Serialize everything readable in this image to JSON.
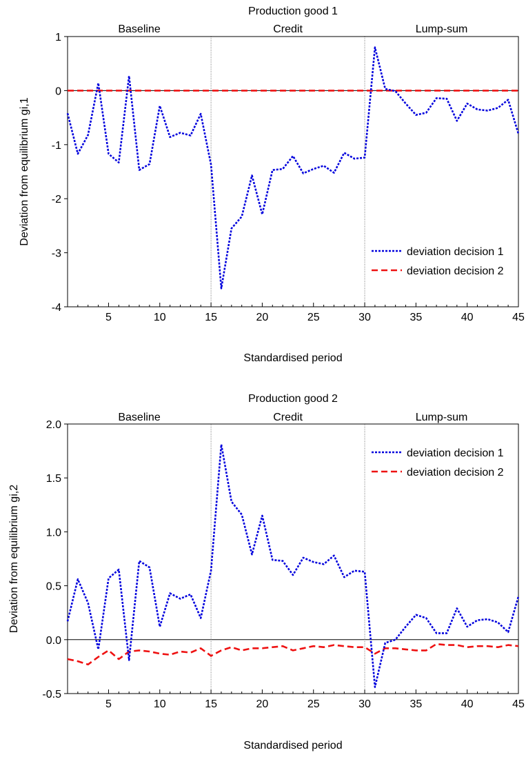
{
  "chart_data": [
    {
      "type": "line",
      "title": "Production good 1",
      "xlabel": "Standardised period",
      "ylabel": "Deviation from equilibrium gi,1",
      "xlim": [
        1,
        45
      ],
      "ylim": [
        -4,
        1
      ],
      "xticks": [
        5,
        10,
        15,
        20,
        25,
        30,
        35,
        40,
        45
      ],
      "xtick_labels": [
        "5",
        "10",
        "15",
        "20",
        "25",
        "30",
        "35",
        "40",
        "45"
      ],
      "yticks": [
        1,
        0,
        -1,
        -2,
        -3,
        -4
      ],
      "ytick_labels": [
        "1",
        "0",
        "-1",
        "-2",
        "-3",
        "-4"
      ],
      "sections": [
        {
          "label": "Baseline",
          "from": 1,
          "to": 15
        },
        {
          "label": "Credit",
          "from": 15,
          "to": 30
        },
        {
          "label": "Lump-sum",
          "from": 30,
          "to": 45
        }
      ],
      "vlines": [
        15,
        30
      ],
      "zero_line": true,
      "legend_position": "bottom-right",
      "x": [
        1,
        2,
        3,
        4,
        5,
        6,
        7,
        8,
        9,
        10,
        11,
        12,
        13,
        14,
        15,
        16,
        17,
        18,
        19,
        20,
        21,
        22,
        23,
        24,
        25,
        26,
        27,
        28,
        29,
        30,
        31,
        32,
        33,
        34,
        35,
        36,
        37,
        38,
        39,
        40,
        41,
        42,
        43,
        44,
        45
      ],
      "series": [
        {
          "name": "deviation decision 1",
          "color": "#0000dd",
          "style": "dotted",
          "values": [
            -0.42,
            -1.17,
            -0.82,
            0.14,
            -1.17,
            -1.33,
            0.27,
            -1.47,
            -1.36,
            -0.28,
            -0.86,
            -0.78,
            -0.83,
            -0.43,
            -1.37,
            -3.66,
            -2.55,
            -2.33,
            -1.57,
            -2.29,
            -1.47,
            -1.45,
            -1.21,
            -1.53,
            -1.45,
            -1.39,
            -1.52,
            -1.15,
            -1.26,
            -1.24,
            0.8,
            0.03,
            -0.01,
            -0.24,
            -0.45,
            -0.41,
            -0.14,
            -0.15,
            -0.56,
            -0.24,
            -0.35,
            -0.37,
            -0.32,
            -0.17,
            -0.8
          ]
        },
        {
          "name": "deviation decision 2",
          "color": "#ee1111",
          "style": "dashed",
          "values": [
            0,
            0,
            0,
            0,
            0,
            0,
            0,
            0,
            0,
            0,
            0,
            0,
            0,
            0,
            0,
            0,
            0,
            0,
            0,
            0,
            0,
            0,
            0,
            0,
            0,
            0,
            0,
            0,
            0,
            0,
            0,
            0,
            0,
            0,
            0,
            0,
            0,
            0,
            0,
            0,
            0,
            0,
            0,
            0,
            0
          ]
        }
      ]
    },
    {
      "type": "line",
      "title": "Production good 2",
      "xlabel": "Standardised period",
      "ylabel": "Deviation from equilibrium gi,2",
      "xlim": [
        1,
        45
      ],
      "ylim": [
        -0.5,
        2.0
      ],
      "xticks": [
        5,
        10,
        15,
        20,
        25,
        30,
        35,
        40,
        45
      ],
      "xtick_labels": [
        "5",
        "10",
        "15",
        "20",
        "25",
        "30",
        "35",
        "40",
        "45"
      ],
      "yticks": [
        2.0,
        1.5,
        1.0,
        0.5,
        0.0,
        -0.5
      ],
      "ytick_labels": [
        "2.0",
        "1.5",
        "1.0",
        "0.5",
        "0.0",
        "-0.5"
      ],
      "sections": [
        {
          "label": "Baseline",
          "from": 1,
          "to": 15
        },
        {
          "label": "Credit",
          "from": 15,
          "to": 30
        },
        {
          "label": "Lump-sum",
          "from": 30,
          "to": 45
        }
      ],
      "vlines": [
        15,
        30
      ],
      "zero_line": true,
      "legend_position": "top-right",
      "x": [
        1,
        2,
        3,
        4,
        5,
        6,
        7,
        8,
        9,
        10,
        11,
        12,
        13,
        14,
        15,
        16,
        17,
        18,
        19,
        20,
        21,
        22,
        23,
        24,
        25,
        26,
        27,
        28,
        29,
        30,
        31,
        32,
        33,
        34,
        35,
        36,
        37,
        38,
        39,
        40,
        41,
        42,
        43,
        44,
        45
      ],
      "series": [
        {
          "name": "deviation decision 1",
          "color": "#0000dd",
          "style": "dotted",
          "values": [
            0.17,
            0.56,
            0.34,
            -0.09,
            0.57,
            0.65,
            -0.19,
            0.73,
            0.67,
            0.12,
            0.43,
            0.38,
            0.42,
            0.2,
            0.64,
            1.81,
            1.28,
            1.16,
            0.79,
            1.15,
            0.74,
            0.73,
            0.6,
            0.76,
            0.72,
            0.7,
            0.78,
            0.58,
            0.64,
            0.63,
            -0.44,
            -0.03,
            0.0,
            0.12,
            0.23,
            0.2,
            0.06,
            0.06,
            0.29,
            0.12,
            0.18,
            0.19,
            0.16,
            0.07,
            0.4
          ]
        },
        {
          "name": "deviation decision 2",
          "color": "#ee1111",
          "style": "dashed",
          "values": [
            -0.18,
            -0.2,
            -0.23,
            -0.16,
            -0.1,
            -0.18,
            -0.11,
            -0.1,
            -0.11,
            -0.13,
            -0.14,
            -0.11,
            -0.12,
            -0.08,
            -0.15,
            -0.1,
            -0.07,
            -0.1,
            -0.08,
            -0.08,
            -0.07,
            -0.06,
            -0.1,
            -0.08,
            -0.06,
            -0.07,
            -0.05,
            -0.06,
            -0.07,
            -0.07,
            -0.13,
            -0.08,
            -0.08,
            -0.09,
            -0.1,
            -0.1,
            -0.04,
            -0.05,
            -0.05,
            -0.07,
            -0.06,
            -0.06,
            -0.07,
            -0.05,
            -0.06
          ]
        }
      ]
    }
  ]
}
